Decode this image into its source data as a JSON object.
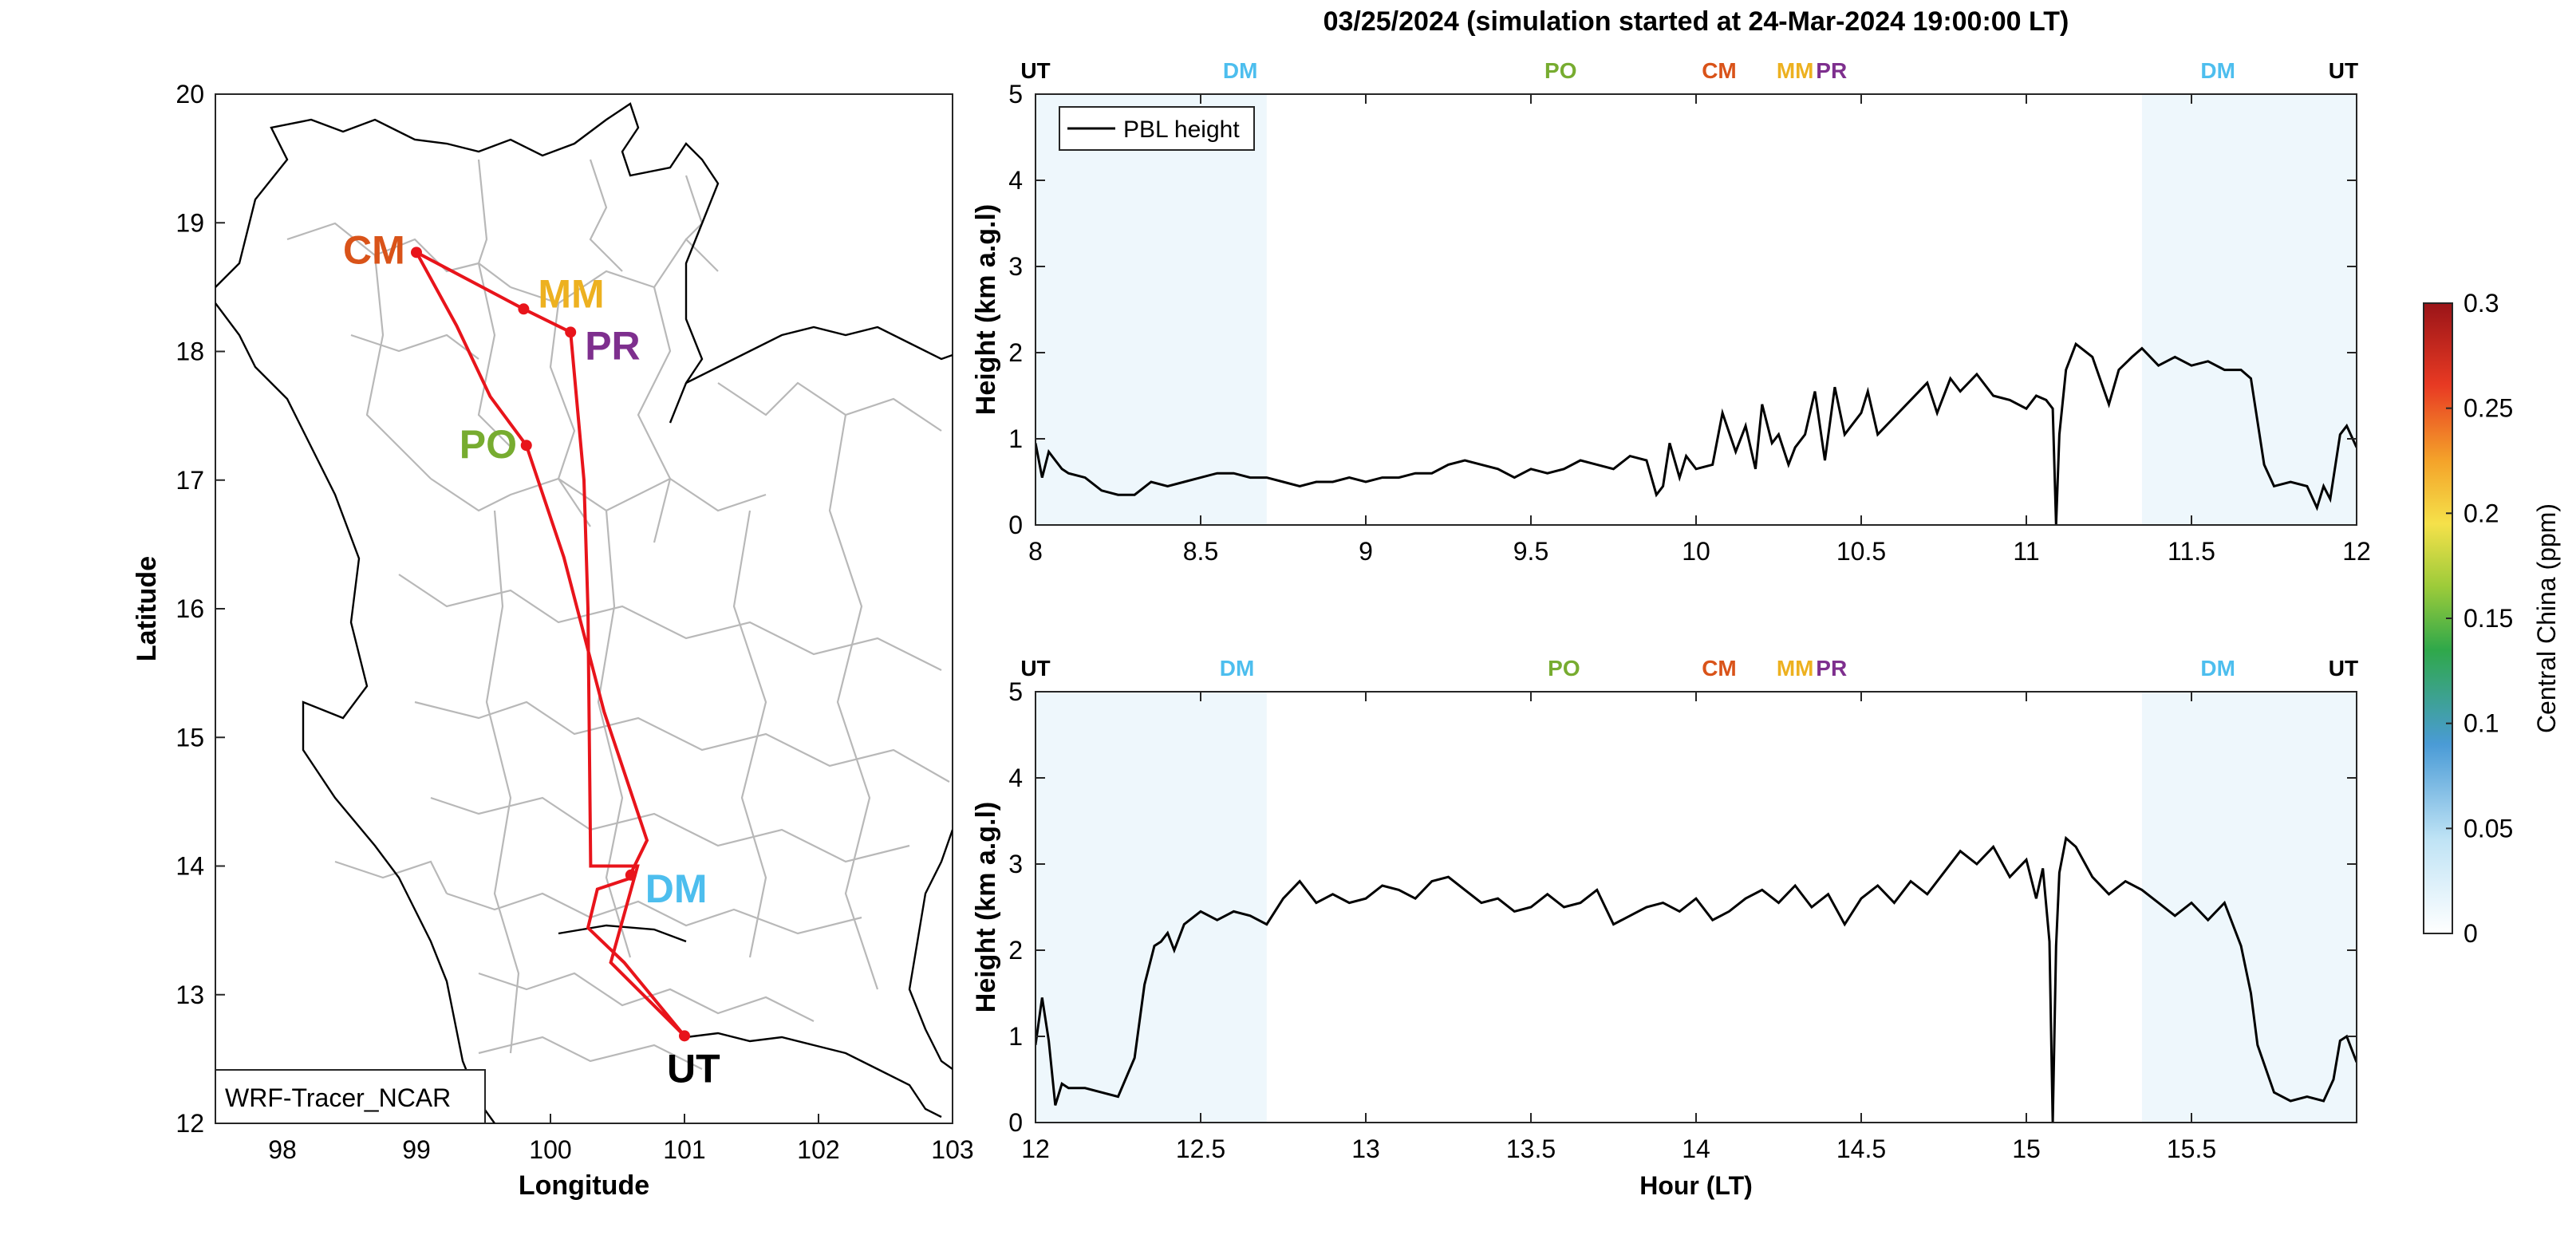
{
  "figure": {
    "title": "03/25/2024 (simulation started at 24-Mar-2024 19:00:00 LT)"
  },
  "map": {
    "xlabel": "Longitude",
    "ylabel": "Latitude",
    "xlim": [
      97.5,
      103
    ],
    "ylim": [
      12,
      20
    ],
    "xticks": [
      "98",
      "99",
      "100",
      "101",
      "102",
      "103"
    ],
    "yticks": [
      "12",
      "13",
      "14",
      "15",
      "16",
      "17",
      "18",
      "19",
      "20"
    ],
    "legend": "WRF-Tracer_NCAR",
    "route_color": "#e8141b",
    "stations": [
      {
        "code": "CM",
        "lon": 99.0,
        "lat": 18.77,
        "color": "#d95319"
      },
      {
        "code": "MM",
        "lon": 99.8,
        "lat": 18.33,
        "color": "#edb120"
      },
      {
        "code": "PR",
        "lon": 100.15,
        "lat": 18.15,
        "color": "#7e2f8e"
      },
      {
        "code": "PO",
        "lon": 99.82,
        "lat": 17.27,
        "color": "#77ac30"
      },
      {
        "code": "DM",
        "lon": 100.6,
        "lat": 13.93,
        "color": "#4dbeee"
      },
      {
        "code": "UT",
        "lon": 101.0,
        "lat": 12.68,
        "color": "#000000"
      }
    ],
    "route": [
      [
        101.0,
        12.68
      ],
      [
        100.55,
        13.25
      ],
      [
        100.28,
        13.52
      ],
      [
        100.35,
        13.82
      ],
      [
        100.58,
        13.9
      ],
      [
        100.72,
        14.2
      ],
      [
        100.4,
        15.2
      ],
      [
        100.1,
        16.4
      ],
      [
        99.82,
        17.27
      ],
      [
        99.55,
        17.65
      ],
      [
        99.3,
        18.2
      ],
      [
        99.0,
        18.77
      ],
      [
        99.8,
        18.33
      ],
      [
        100.15,
        18.15
      ],
      [
        100.25,
        17.0
      ],
      [
        100.28,
        16.0
      ],
      [
        100.3,
        14.0
      ],
      [
        100.65,
        14.0
      ],
      [
        100.45,
        13.25
      ],
      [
        101.0,
        12.68
      ]
    ]
  },
  "panels": [
    {
      "ylabel": "Height (km a.g.l)",
      "xlabel": "",
      "xlim": [
        8,
        12
      ],
      "ylim": [
        0,
        5
      ],
      "xticks": [
        "8",
        "8.5",
        "9",
        "9.5",
        "10",
        "10.5",
        "11",
        "11.5",
        "12"
      ],
      "yticks": [
        "0",
        "1",
        "2",
        "3",
        "4",
        "5"
      ],
      "legend": "PBL height",
      "station_labels": [
        {
          "code": "UT",
          "x": 8.0,
          "color": "#000000"
        },
        {
          "code": "DM",
          "x": 8.62,
          "color": "#4dbeee"
        },
        {
          "code": "PO",
          "x": 9.59,
          "color": "#77ac30"
        },
        {
          "code": "CM",
          "x": 10.07,
          "color": "#d95319"
        },
        {
          "code": "MM",
          "x": 10.3,
          "color": "#edb120"
        },
        {
          "code": "PR",
          "x": 10.41,
          "color": "#7e2f8e"
        },
        {
          "code": "DM",
          "x": 11.58,
          "color": "#4dbeee"
        },
        {
          "code": "UT",
          "x": 11.96,
          "color": "#000000"
        }
      ],
      "shade_bands": [
        [
          8.0,
          8.7
        ],
        [
          11.35,
          12.0
        ]
      ]
    },
    {
      "ylabel": "Height (km a.g.l)",
      "xlabel": "Hour (LT)",
      "xlim": [
        12,
        16
      ],
      "ylim": [
        0,
        5
      ],
      "xticks": [
        "12",
        "12.5",
        "13",
        "13.5",
        "14",
        "14.5",
        "15",
        "15.5"
      ],
      "yticks": [
        "0",
        "1",
        "2",
        "3",
        "4",
        "5"
      ],
      "legend": "",
      "station_labels": [
        {
          "code": "UT",
          "x": 12.0,
          "color": "#000000"
        },
        {
          "code": "DM",
          "x": 12.61,
          "color": "#4dbeee"
        },
        {
          "code": "PO",
          "x": 13.6,
          "color": "#77ac30"
        },
        {
          "code": "CM",
          "x": 14.07,
          "color": "#d95319"
        },
        {
          "code": "MM",
          "x": 14.3,
          "color": "#edb120"
        },
        {
          "code": "PR",
          "x": 14.41,
          "color": "#7e2f8e"
        },
        {
          "code": "DM",
          "x": 15.58,
          "color": "#4dbeee"
        },
        {
          "code": "UT",
          "x": 15.96,
          "color": "#000000"
        }
      ],
      "shade_bands": [
        [
          12.0,
          12.7
        ],
        [
          15.35,
          16.0
        ]
      ]
    }
  ],
  "colorbar": {
    "label": "Central China (ppm)",
    "ticks": [
      "0",
      "0.05",
      "0.1",
      "0.15",
      "0.2",
      "0.25",
      "0.3"
    ],
    "min": 0,
    "max": 0.3
  },
  "chart_data": [
    {
      "type": "line",
      "series": [
        {
          "name": "PBL height",
          "x": [
            8.0,
            8.02,
            8.04,
            8.06,
            8.08,
            8.1,
            8.15,
            8.2,
            8.25,
            8.3,
            8.35,
            8.4,
            8.45,
            8.5,
            8.55,
            8.6,
            8.65,
            8.7,
            8.75,
            8.8,
            8.85,
            8.9,
            8.95,
            9.0,
            9.05,
            9.1,
            9.15,
            9.2,
            9.25,
            9.3,
            9.35,
            9.4,
            9.45,
            9.5,
            9.55,
            9.6,
            9.65,
            9.7,
            9.75,
            9.8,
            9.85,
            9.88,
            9.9,
            9.92,
            9.95,
            9.97,
            10.0,
            10.05,
            10.08,
            10.12,
            10.15,
            10.18,
            10.2,
            10.23,
            10.25,
            10.28,
            10.3,
            10.33,
            10.36,
            10.39,
            10.42,
            10.45,
            10.5,
            10.52,
            10.55,
            10.6,
            10.65,
            10.7,
            10.73,
            10.77,
            10.8,
            10.85,
            10.9,
            10.95,
            11.0,
            11.03,
            11.06,
            11.08,
            11.09,
            11.1,
            11.12,
            11.15,
            11.2,
            11.25,
            11.28,
            11.32,
            11.35,
            11.4,
            11.45,
            11.5,
            11.55,
            11.6,
            11.65,
            11.68,
            11.7,
            11.72,
            11.75,
            11.8,
            11.85,
            11.88,
            11.9,
            11.92,
            11.95,
            11.97,
            12.0
          ],
          "y": [
            0.95,
            0.55,
            0.85,
            0.75,
            0.65,
            0.6,
            0.55,
            0.4,
            0.35,
            0.35,
            0.5,
            0.45,
            0.5,
            0.55,
            0.6,
            0.6,
            0.55,
            0.55,
            0.5,
            0.45,
            0.5,
            0.5,
            0.55,
            0.5,
            0.55,
            0.55,
            0.6,
            0.6,
            0.7,
            0.75,
            0.7,
            0.65,
            0.55,
            0.65,
            0.6,
            0.65,
            0.75,
            0.7,
            0.65,
            0.8,
            0.75,
            0.35,
            0.45,
            0.95,
            0.55,
            0.8,
            0.65,
            0.7,
            1.3,
            0.85,
            1.15,
            0.65,
            1.4,
            0.95,
            1.05,
            0.7,
            0.9,
            1.05,
            1.55,
            0.75,
            1.6,
            1.05,
            1.3,
            1.55,
            1.05,
            1.25,
            1.45,
            1.65,
            1.3,
            1.7,
            1.55,
            1.75,
            1.5,
            1.45,
            1.35,
            1.5,
            1.45,
            1.35,
            0.0,
            1.05,
            1.8,
            2.1,
            1.95,
            1.4,
            1.8,
            1.95,
            2.05,
            1.85,
            1.95,
            1.85,
            1.9,
            1.8,
            1.8,
            1.7,
            1.2,
            0.7,
            0.45,
            0.5,
            0.45,
            0.2,
            0.45,
            0.3,
            1.05,
            1.15,
            0.9
          ]
        }
      ]
    },
    {
      "type": "line",
      "series": [
        {
          "name": "",
          "x": [
            12.0,
            12.02,
            12.04,
            12.06,
            12.08,
            12.1,
            12.15,
            12.2,
            12.25,
            12.3,
            12.33,
            12.36,
            12.38,
            12.4,
            12.42,
            12.45,
            12.5,
            12.55,
            12.6,
            12.65,
            12.7,
            12.75,
            12.8,
            12.85,
            12.9,
            12.95,
            13.0,
            13.05,
            13.1,
            13.15,
            13.2,
            13.25,
            13.3,
            13.35,
            13.4,
            13.45,
            13.5,
            13.55,
            13.6,
            13.65,
            13.7,
            13.75,
            13.8,
            13.85,
            13.9,
            13.95,
            14.0,
            14.05,
            14.1,
            14.15,
            14.2,
            14.25,
            14.3,
            14.35,
            14.4,
            14.45,
            14.5,
            14.55,
            14.6,
            14.65,
            14.7,
            14.75,
            14.8,
            14.85,
            14.9,
            14.95,
            15.0,
            15.03,
            15.05,
            15.07,
            15.08,
            15.09,
            15.1,
            15.12,
            15.15,
            15.2,
            15.25,
            15.3,
            15.35,
            15.4,
            15.45,
            15.5,
            15.55,
            15.6,
            15.65,
            15.68,
            15.7,
            15.75,
            15.8,
            15.85,
            15.9,
            15.93,
            15.95,
            15.97,
            16.0
          ],
          "y": [
            0.9,
            1.45,
            0.95,
            0.2,
            0.45,
            0.4,
            0.4,
            0.35,
            0.3,
            0.75,
            1.6,
            2.05,
            2.1,
            2.2,
            2.0,
            2.3,
            2.45,
            2.35,
            2.45,
            2.4,
            2.3,
            2.6,
            2.8,
            2.55,
            2.65,
            2.55,
            2.6,
            2.75,
            2.7,
            2.6,
            2.8,
            2.85,
            2.7,
            2.55,
            2.6,
            2.45,
            2.5,
            2.65,
            2.5,
            2.55,
            2.7,
            2.3,
            2.4,
            2.5,
            2.55,
            2.45,
            2.6,
            2.35,
            2.45,
            2.6,
            2.7,
            2.55,
            2.75,
            2.5,
            2.65,
            2.3,
            2.6,
            2.75,
            2.55,
            2.8,
            2.65,
            2.9,
            3.15,
            3.0,
            3.2,
            2.85,
            3.05,
            2.6,
            2.95,
            2.1,
            0.0,
            2.05,
            2.9,
            3.3,
            3.2,
            2.85,
            2.65,
            2.8,
            2.7,
            2.55,
            2.4,
            2.55,
            2.35,
            2.55,
            2.05,
            1.5,
            0.9,
            0.35,
            0.25,
            0.3,
            0.25,
            0.5,
            0.95,
            1.0,
            0.7
          ]
        }
      ]
    }
  ]
}
